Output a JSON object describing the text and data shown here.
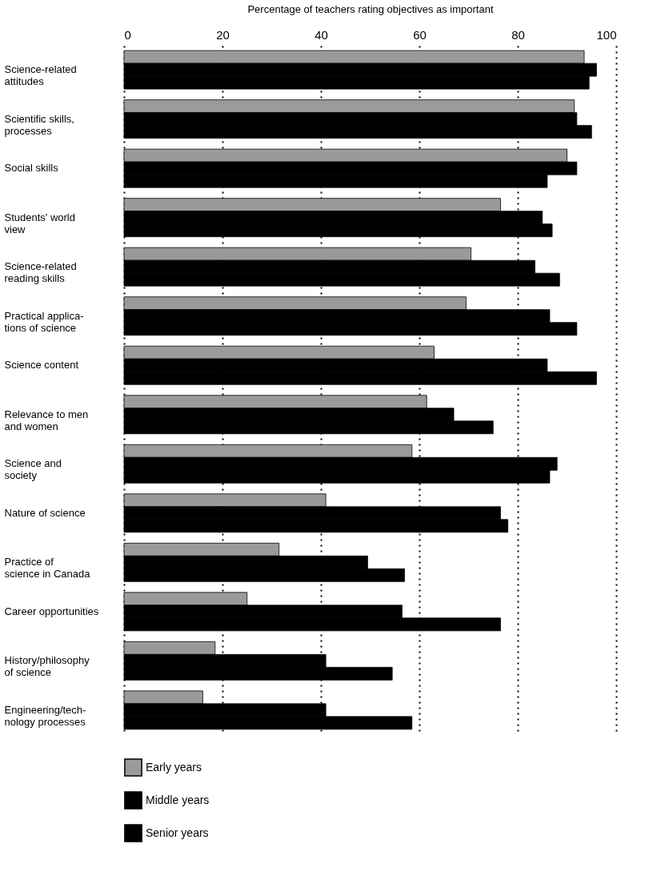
{
  "chart_data": {
    "type": "bar",
    "orientation": "horizontal",
    "xlabel": "Percentage of teachers rating objectives as important",
    "categories": [
      "Science-related\nattitudes",
      "Scientific skills,\nprocesses",
      "Social skills",
      "Students' world\nview",
      "Science-related\nreading skills",
      "Practical applica-\ntions of science",
      "Science content",
      "Relevance to men\nand women",
      "Science and\nsociety",
      "Nature of science",
      "Practice of\nscience in Canada",
      "Career opportunities",
      "History/philosophy\nof science",
      "Engineering/tech-\nnology processes"
    ],
    "series": [
      {
        "name": "Early years",
        "color": "#9a9a9a",
        "values": [
          93.5,
          91.5,
          90,
          76.5,
          70.5,
          69.5,
          63,
          61.5,
          58.5,
          41,
          31.5,
          25,
          18.5,
          16
        ]
      },
      {
        "name": "Middle years",
        "color": "#000000",
        "values": [
          96,
          92,
          92,
          85,
          83.5,
          86.5,
          86,
          67,
          88,
          76.5,
          49.5,
          56.5,
          41,
          41
        ]
      },
      {
        "name": "Senior years",
        "color": "#000000",
        "values": [
          94.5,
          95,
          86,
          87,
          88.5,
          92,
          96,
          75,
          86.5,
          78,
          57,
          76.5,
          54.5,
          58.5
        ]
      }
    ],
    "xlim": [
      0,
      100
    ],
    "xticks": [
      0,
      20,
      40,
      60,
      80,
      100
    ],
    "grid": "x",
    "legend": "bottom left"
  }
}
